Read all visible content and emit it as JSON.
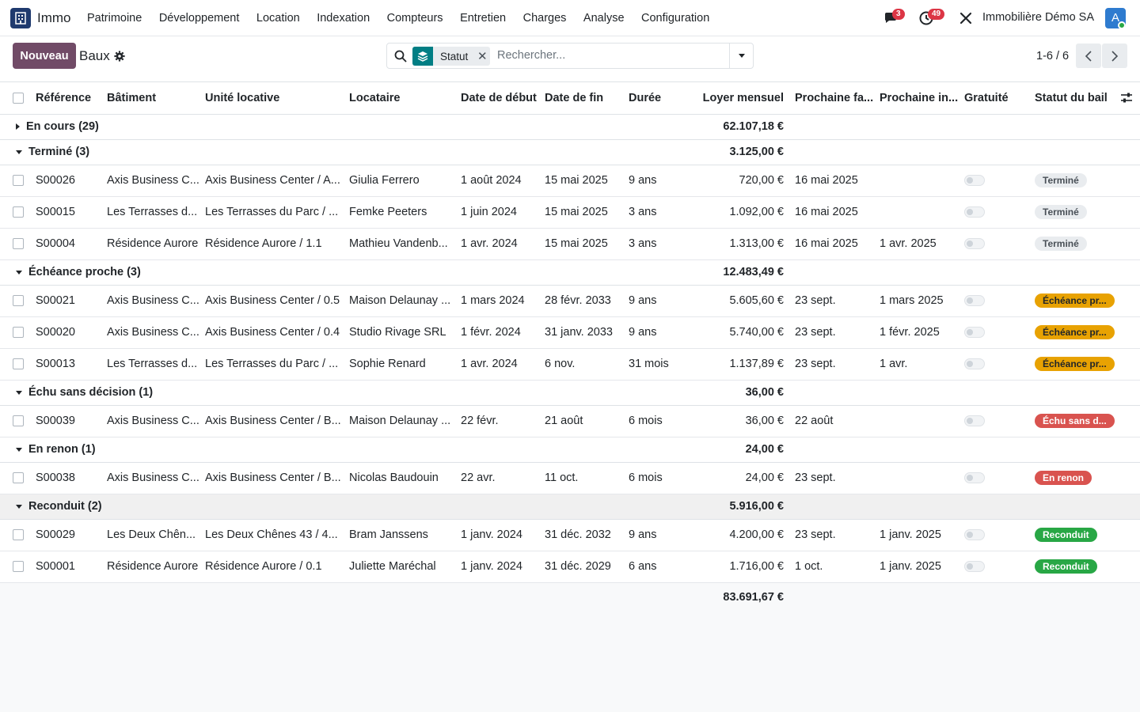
{
  "app": {
    "name": "Immo",
    "company": "Immobilière Démo SA",
    "avatar_letter": "A"
  },
  "menu": [
    "Patrimoine",
    "Développement",
    "Location",
    "Indexation",
    "Compteurs",
    "Entretien",
    "Charges",
    "Analyse",
    "Configuration"
  ],
  "badges": {
    "messages": "3",
    "activities": "49"
  },
  "control": {
    "new_label": "Nouveau",
    "breadcrumb": "Baux",
    "facet_label": "Statut",
    "search_placeholder": "Rechercher...",
    "pager": "1-6 / 6"
  },
  "columns": [
    "Référence",
    "Bâtiment",
    "Unité locative",
    "Locataire",
    "Date de début",
    "Date de fin",
    "Durée",
    "Loyer mensuel",
    "Prochaine fa...",
    "Prochaine in...",
    "Gratuité",
    "Statut du bail"
  ],
  "groups": [
    {
      "label": "En cours (29)",
      "total": "62.107,18 €",
      "expanded": false,
      "rows": []
    },
    {
      "label": "Terminé (3)",
      "total": "3.125,00 €",
      "expanded": true,
      "rows": [
        {
          "ref": "S00026",
          "building": "Axis Business C...",
          "unit": "Axis Business Center / A...",
          "tenant": "Giulia Ferrero",
          "start": "1 août 2024",
          "end": "15 mai 2025",
          "duration": "9 ans",
          "rent": "720,00 €",
          "next_invoice": "16 mai 2025",
          "next_index": "",
          "status": "Terminé",
          "status_class": "s-ended"
        },
        {
          "ref": "S00015",
          "building": "Les Terrasses d...",
          "unit": "Les Terrasses du Parc / ...",
          "tenant": "Femke Peeters",
          "start": "1 juin 2024",
          "end": "15 mai 2025",
          "duration": "3 ans",
          "rent": "1.092,00 €",
          "next_invoice": "16 mai 2025",
          "next_index": "",
          "status": "Terminé",
          "status_class": "s-ended"
        },
        {
          "ref": "S00004",
          "building": "Résidence Aurore",
          "unit": "Résidence Aurore / 1.1",
          "tenant": "Mathieu Vandenb...",
          "start": "1 avr. 2024",
          "end": "15 mai 2025",
          "duration": "3 ans",
          "rent": "1.313,00 €",
          "next_invoice": "16 mai 2025",
          "next_index": "1 avr. 2025",
          "status": "Terminé",
          "status_class": "s-ended"
        }
      ]
    },
    {
      "label": "Échéance proche (3)",
      "total": "12.483,49 €",
      "expanded": true,
      "rows": [
        {
          "ref": "S00021",
          "building": "Axis Business C...",
          "unit": "Axis Business Center / 0.5",
          "tenant": "Maison Delaunay ...",
          "start": "1 mars 2024",
          "end": "28 févr. 2033",
          "duration": "9 ans",
          "rent": "5.605,60 €",
          "next_invoice": "23 sept.",
          "next_index": "1 mars 2025",
          "status": "Échéance pr...",
          "status_class": "s-soon"
        },
        {
          "ref": "S00020",
          "building": "Axis Business C...",
          "unit": "Axis Business Center / 0.4",
          "tenant": "Studio Rivage SRL",
          "start": "1 févr. 2024",
          "end": "31 janv. 2033",
          "duration": "9 ans",
          "rent": "5.740,00 €",
          "next_invoice": "23 sept.",
          "next_index": "1 févr. 2025",
          "status": "Échéance pr...",
          "status_class": "s-soon"
        },
        {
          "ref": "S00013",
          "building": "Les Terrasses d...",
          "unit": "Les Terrasses du Parc / ...",
          "tenant": "Sophie Renard",
          "start": "1 avr. 2024",
          "end": "6 nov.",
          "duration": "31 mois",
          "rent": "1.137,89 €",
          "next_invoice": "23 sept.",
          "next_index": "1 avr.",
          "status": "Échéance pr...",
          "status_class": "s-soon"
        }
      ]
    },
    {
      "label": "Échu sans décision (1)",
      "total": "36,00 €",
      "expanded": true,
      "rows": [
        {
          "ref": "S00039",
          "building": "Axis Business C...",
          "unit": "Axis Business Center / B...",
          "tenant": "Maison Delaunay ...",
          "start": "22 févr.",
          "end": "21 août",
          "duration": "6 mois",
          "rent": "36,00 €",
          "next_invoice": "22 août",
          "next_index": "",
          "status": "Échu sans d...",
          "status_class": "s-expired"
        }
      ]
    },
    {
      "label": "En renon (1)",
      "total": "24,00 €",
      "expanded": true,
      "rows": [
        {
          "ref": "S00038",
          "building": "Axis Business C...",
          "unit": "Axis Business Center / B...",
          "tenant": "Nicolas Baudouin",
          "start": "22 avr.",
          "end": "11 oct.",
          "duration": "6 mois",
          "rent": "24,00 €",
          "next_invoice": "23 sept.",
          "next_index": "",
          "status": "En renon",
          "status_class": "s-renon"
        }
      ]
    },
    {
      "label": "Reconduit (2)",
      "total": "5.916,00 €",
      "expanded": true,
      "highlight": true,
      "rows": [
        {
          "ref": "S00029",
          "building": "Les Deux Chên...",
          "unit": "Les Deux Chênes 43 / 4...",
          "tenant": "Bram Janssens",
          "start": "1 janv. 2024",
          "end": "31 déc. 2032",
          "duration": "9 ans",
          "rent": "4.200,00 €",
          "next_invoice": "23 sept.",
          "next_index": "1 janv. 2025",
          "status": "Reconduit",
          "status_class": "s-renewed"
        },
        {
          "ref": "S00001",
          "building": "Résidence Aurore",
          "unit": "Résidence Aurore / 0.1",
          "tenant": "Juliette Maréchal",
          "start": "1 janv. 2024",
          "end": "31 déc. 2029",
          "duration": "6 ans",
          "rent": "1.716,00 €",
          "next_invoice": "1 oct.",
          "next_index": "1 janv. 2025",
          "status": "Reconduit",
          "status_class": "s-renewed"
        }
      ]
    }
  ],
  "grand_total": "83.691,67 €",
  "icons": {
    "app": "building-icon",
    "messages": "chat-icon",
    "activities": "clock-icon",
    "debug": "tools-icon",
    "settings": "gear-icon",
    "search": "search-icon",
    "facet": "layers-icon",
    "prev": "chevron-left-icon",
    "next": "chevron-right-icon",
    "optional_columns": "sliders-icon"
  },
  "colors": {
    "primary": "#714b67",
    "facet": "#017e84",
    "soon": "#e8a202",
    "danger": "#d9534f",
    "success": "#28a745"
  }
}
